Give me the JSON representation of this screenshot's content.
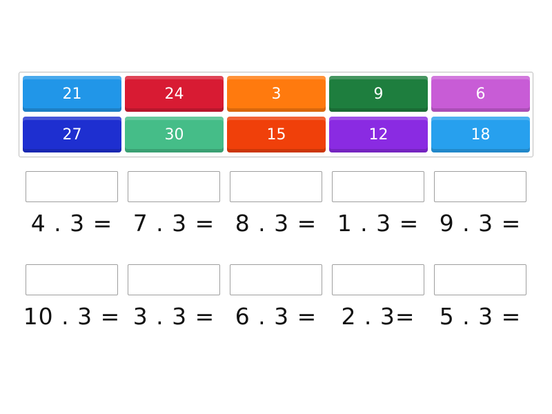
{
  "tiles": [
    {
      "label": "21",
      "color": "#2196e8"
    },
    {
      "label": "24",
      "color": "#d81b33"
    },
    {
      "label": "3",
      "color": "#ff7a0e"
    },
    {
      "label": "9",
      "color": "#1e7e3e"
    },
    {
      "label": "6",
      "color": "#c85cd6"
    },
    {
      "label": "27",
      "color": "#1e2fd0"
    },
    {
      "label": "30",
      "color": "#45bd88"
    },
    {
      "label": "15",
      "color": "#f0400a"
    },
    {
      "label": "12",
      "color": "#8a2be2"
    },
    {
      "label": "18",
      "color": "#27a0ee"
    }
  ],
  "questions": [
    {
      "label": "4 . 3 ="
    },
    {
      "label": "7 . 3 ="
    },
    {
      "label": "8 . 3 ="
    },
    {
      "label": "1 . 3 ="
    },
    {
      "label": "9 . 3 ="
    },
    {
      "label": "10 . 3 ="
    },
    {
      "label": "3 . 3 ="
    },
    {
      "label": "6 . 3 ="
    },
    {
      "label": "2 . 3="
    },
    {
      "label": "5 . 3 ="
    }
  ]
}
